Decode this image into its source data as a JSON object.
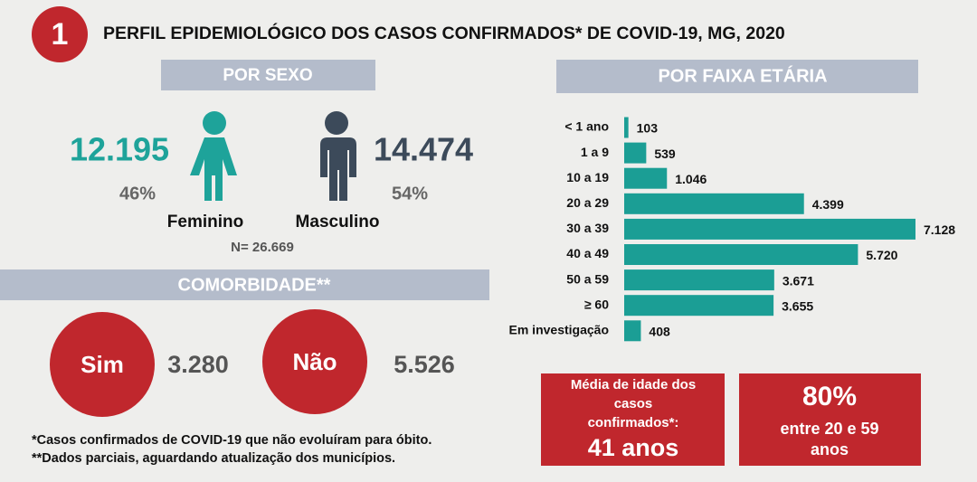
{
  "header": {
    "number": "1",
    "title": "PERFIL EPIDEMIOLÓGICO DOS CASOS CONFIRMADOS* DE COVID-19, MG, 2020"
  },
  "sex": {
    "title": "POR SEXO",
    "female": {
      "count": "12.195",
      "percent": "46%",
      "label": "Feminino"
    },
    "male": {
      "count": "14.474",
      "percent": "54%",
      "label": "Masculino"
    },
    "total": "N= 26.669"
  },
  "comorbidity": {
    "title": "COMORBIDADE**",
    "yes": {
      "label": "Sim",
      "count": "3.280"
    },
    "no": {
      "label": "Não",
      "count": "5.526"
    }
  },
  "footnotes": [
    "*Casos confirmados de COVID-19 que não evoluíram para óbito.",
    "**Dados parciais, aguardando atualização dos municípios."
  ],
  "chart_data": {
    "type": "hbar",
    "title": "POR FAIXA ETÁRIA",
    "color": "#1b9e95",
    "categories": [
      "< 1 ano",
      "1 a 9",
      "10 a 19",
      "20 a 29",
      "30 a 39",
      "40 a 49",
      "50 a 59",
      "≥ 60",
      "Em investigação"
    ],
    "values": [
      103,
      539,
      1046,
      4399,
      7128,
      5720,
      3671,
      3655,
      408
    ],
    "value_labels": [
      "103",
      "539",
      "1.046",
      "4.399",
      "7.128",
      "5.720",
      "3.671",
      "3.655",
      "408"
    ]
  },
  "mean_age": {
    "lines": [
      "Média de idade dos",
      "casos",
      "confirmados*:"
    ],
    "value": "41 anos"
  },
  "share": {
    "value": "80%",
    "lines": [
      "entre 20 e 59",
      "anos"
    ]
  }
}
